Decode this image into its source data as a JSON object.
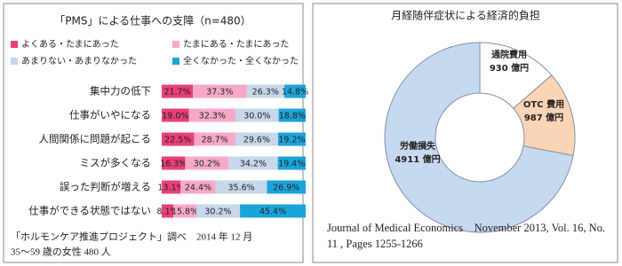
{
  "chart_data": [
    {
      "type": "stacked-bar-100",
      "title": "「PMS」による仕事への支障（n=480）",
      "categories": [
        "集中力の低下",
        "仕事がいやになる",
        "人間関係に問題が起こる",
        "ミスが多くなる",
        "誤った判断が増える",
        "仕事ができる状態ではない"
      ],
      "series": [
        {
          "name": "よくある・たまにあった",
          "color": "#e8407a",
          "values": [
            21.7,
            19.0,
            22.5,
            16.3,
            13.1,
            8.1
          ],
          "value_labels": [
            "21.7%",
            "19.0%",
            "22.5%",
            "16.3%",
            "13.1%",
            "8.1%"
          ]
        },
        {
          "name": "たまにある・たまにあった",
          "color": "#f7a8c8",
          "values": [
            37.3,
            32.3,
            28.7,
            30.2,
            24.4,
            15.8
          ],
          "value_labels": [
            "37.3%",
            "32.3%",
            "28.7%",
            "30.2%",
            "24.4%",
            "15.8%"
          ]
        },
        {
          "name": "あまりない・あまりなかった",
          "color": "#c9d7ea",
          "values": [
            26.3,
            30.0,
            29.6,
            34.2,
            35.6,
            30.2
          ],
          "value_labels": [
            "26.3%",
            "30.0%",
            "29.6%",
            "34.2%",
            "35.6%",
            "30.2%"
          ]
        },
        {
          "name": "全くなかった・全くなかった",
          "color": "#1ba4da",
          "values": [
            14.8,
            18.8,
            19.2,
            19.4,
            26.9,
            45.4
          ],
          "value_labels": [
            "14.8%",
            "18.8%",
            "19.2%",
            "19.4%",
            "26.9%",
            "45.4%"
          ]
        }
      ],
      "notes": [
        "「ホルモンケア推進プロジェクト」調べ　2014 年 12 月",
        "35～59 歳の女性 480 人"
      ]
    },
    {
      "type": "donut",
      "title": "月経随伴症状による経済的負担",
      "categories": [
        "通院費用",
        "OTC 費用",
        "労働損失"
      ],
      "values": [
        930,
        987,
        4911
      ],
      "value_labels": [
        "930 億円",
        "987 億円",
        "4911 億円"
      ],
      "colors": [
        "#ffffff",
        "#fcd5b6",
        "#c6d9f1"
      ],
      "source": "Journal of Medical Economics　November 2013, Vol. 16, No. 11 , Pages 1255-1266"
    }
  ]
}
